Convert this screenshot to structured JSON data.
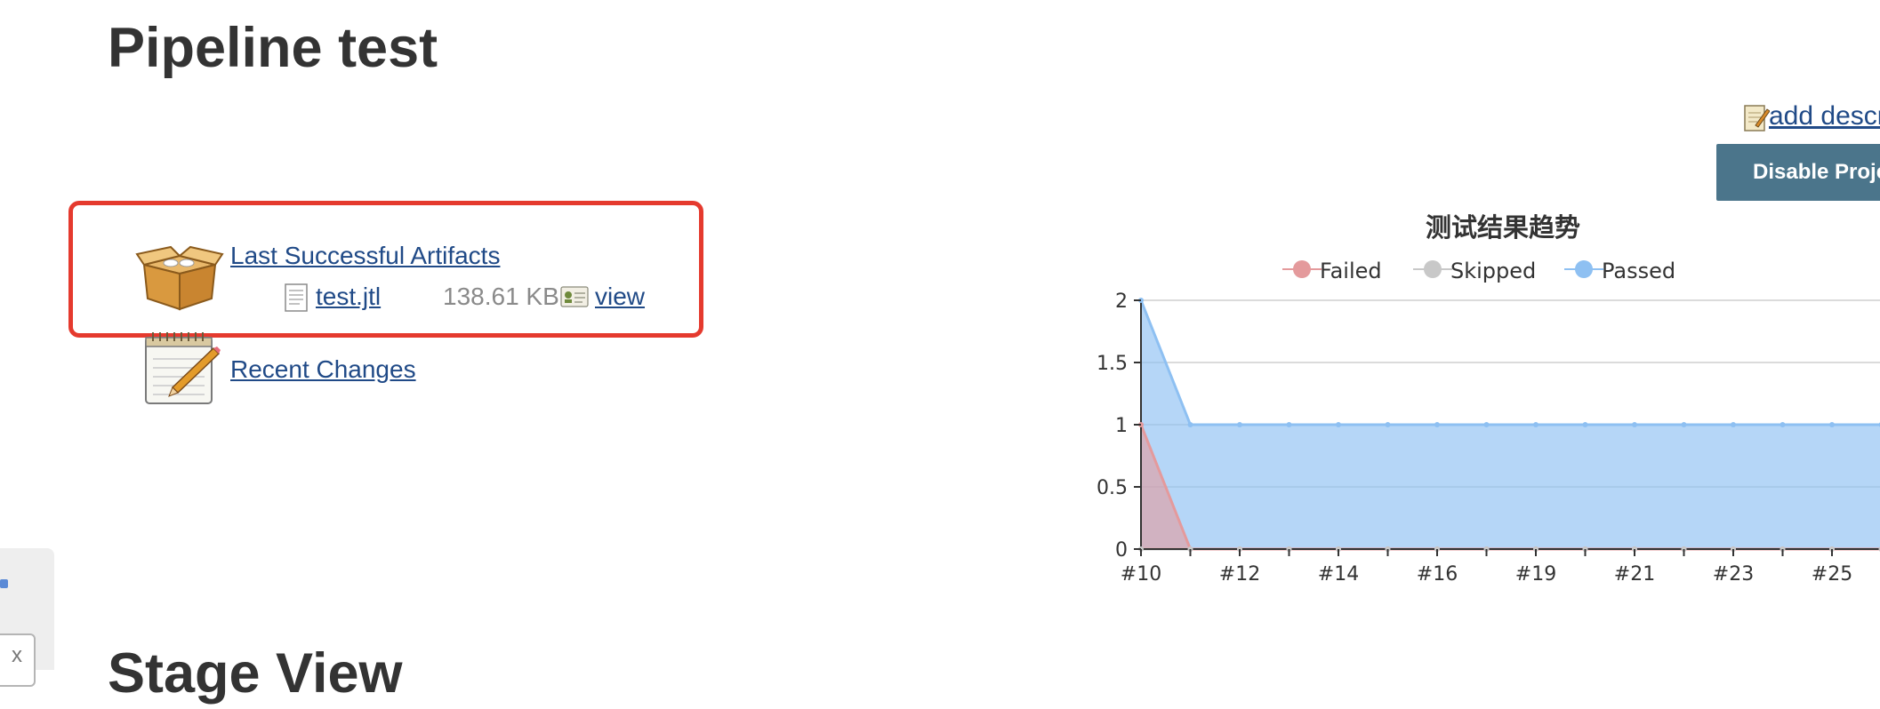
{
  "page": {
    "title": "Pipeline test",
    "stage_view_title": "Stage View"
  },
  "actions": {
    "add_description_label": "add description",
    "disable_project_label": "Disable Project"
  },
  "artifacts": {
    "section_label": "Last Successful Artifacts",
    "files": [
      {
        "name": "test.jtl",
        "size": "138.61 KB",
        "view_label": "view"
      }
    ]
  },
  "recent_changes": {
    "label": "Recent Changes"
  },
  "side_panel": {
    "close_label": "x"
  },
  "icons": {
    "artifacts": "package-icon",
    "recent_changes": "notepad-pencil-icon",
    "file": "document-icon",
    "view": "fingerprint-card-icon",
    "add_description": "notepad-edit-icon"
  },
  "colors": {
    "disable_button": "#4b758b",
    "highlight": "#e53a2e",
    "failed": "#e49a9c",
    "skipped": "#c8c8c8",
    "passed": "#8ec0f2"
  },
  "chart_data": {
    "type": "area",
    "title": "测试结果趋势",
    "legend_position": "top",
    "x": [
      "#10",
      "#11",
      "#12",
      "#13",
      "#14",
      "#15",
      "#16",
      "#17",
      "#19",
      "#20",
      "#21",
      "#22",
      "#23",
      "#24",
      "#25",
      "#26"
    ],
    "x_tick_labels": [
      "#10",
      "#12",
      "#14",
      "#16",
      "#19",
      "#21",
      "#23",
      "#25"
    ],
    "y_ticks": [
      "0",
      "0.5",
      "1",
      "1.5",
      "2"
    ],
    "ylim": [
      0,
      2
    ],
    "grid": true,
    "series": [
      {
        "name": "Failed",
        "color": "#e49a9c",
        "values": [
          1,
          0,
          0,
          0,
          0,
          0,
          0,
          0,
          0,
          0,
          0,
          0,
          0,
          0,
          0,
          0
        ]
      },
      {
        "name": "Skipped",
        "color": "#c8c8c8",
        "values": [
          0,
          0,
          0,
          0,
          0,
          0,
          0,
          0,
          0,
          0,
          0,
          0,
          0,
          0,
          0,
          0
        ]
      },
      {
        "name": "Passed",
        "color": "#8ec0f2",
        "values": [
          2,
          1,
          1,
          1,
          1,
          1,
          1,
          1,
          1,
          1,
          1,
          1,
          1,
          1,
          1,
          1
        ]
      }
    ]
  }
}
